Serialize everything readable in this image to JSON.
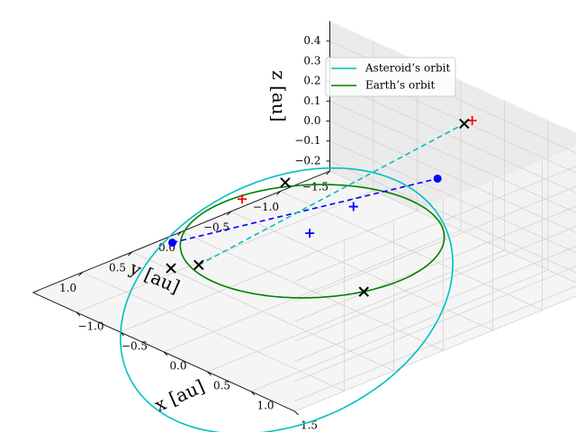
{
  "chart_data": {
    "type": "line",
    "projection": "3d",
    "xlabel": "x [au]",
    "ylabel": "y [au]",
    "zlabel": "z [au]",
    "xlim": [
      -1.5,
      1.5
    ],
    "ylim": [
      -1.5,
      1.5
    ],
    "zlim": [
      -0.25,
      0.5
    ],
    "grid": true,
    "legend_position": "top-right",
    "x_ticks": [
      "−1.0",
      "−0.5",
      "0.0",
      "0.5",
      "1.0",
      "1.5"
    ],
    "x_tick_values": [
      -1.0,
      -0.5,
      0.0,
      0.5,
      1.0,
      1.5
    ],
    "y_ticks": [
      "1.0",
      "0.5",
      "0.0",
      "−0.5",
      "−1.0",
      "−1.5"
    ],
    "y_tick_values": [
      1.0,
      0.5,
      0.0,
      -0.5,
      -1.0,
      -1.5
    ],
    "z_ticks": [
      "0.4",
      "0.3",
      "0.2",
      "0.1",
      "0.0",
      "−0.1",
      "−0.2"
    ],
    "z_tick_values": [
      0.4,
      0.3,
      0.2,
      0.1,
      0.0,
      -0.1,
      -0.2
    ],
    "series": [
      {
        "name": "Asteroid’s orbit",
        "color": "#00bfbf",
        "curve": "ellipse",
        "semi_major_axis": 1.4,
        "eccentricity": 0.45,
        "inclination_deg": 12,
        "node_longitude_deg": 160,
        "perihelion_argument_deg": 80
      },
      {
        "name": "Earth’s orbit",
        "color": "#008000",
        "curve": "circle",
        "radius": 1.0,
        "z": 0.0
      }
    ],
    "connectors": [
      {
        "color": "#0000ff",
        "style": "dashed",
        "from": [
          -0.9,
          0.62,
          -0.06
        ],
        "to": [
          0.38,
          -0.93,
          0.2
        ]
      },
      {
        "color": "#00bfbf",
        "style": "dashed",
        "from": [
          -0.62,
          0.6,
          -0.12
        ],
        "to": [
          0.38,
          -1.2,
          0.42
        ]
      }
    ],
    "points": [
      {
        "marker": "circle",
        "color": "#0000ff",
        "x": -0.9,
        "y": 0.62,
        "z": -0.06
      },
      {
        "marker": "circle",
        "color": "#0000ff",
        "x": 0.38,
        "y": -0.93,
        "z": 0.2
      },
      {
        "marker": "plus",
        "color": "#0000ff",
        "x": -0.05,
        "y": -0.46,
        "z": 0.07
      },
      {
        "marker": "plus",
        "color": "#0000ff",
        "x": -0.12,
        "y": -0.08,
        "z": 0.0
      },
      {
        "marker": "plus",
        "color": "#ff0000",
        "x": -0.94,
        "y": -0.12,
        "z": 0.0
      },
      {
        "marker": "plus",
        "color": "#ff0000",
        "x": 0.38,
        "y": -1.28,
        "z": 0.42
      },
      {
        "marker": "x",
        "color": "#000000",
        "x": -0.82,
        "y": -0.45,
        "z": 0.04
      },
      {
        "marker": "x",
        "color": "#000000",
        "x": 0.42,
        "y": -0.15,
        "z": -0.2
      },
      {
        "marker": "x",
        "color": "#000000",
        "x": -0.62,
        "y": 0.6,
        "z": -0.12
      },
      {
        "marker": "x",
        "color": "#000000",
        "x": -0.78,
        "y": 0.74,
        "z": -0.14
      },
      {
        "marker": "x",
        "color": "#000000",
        "x": 0.38,
        "y": -1.2,
        "z": 0.42
      }
    ]
  }
}
